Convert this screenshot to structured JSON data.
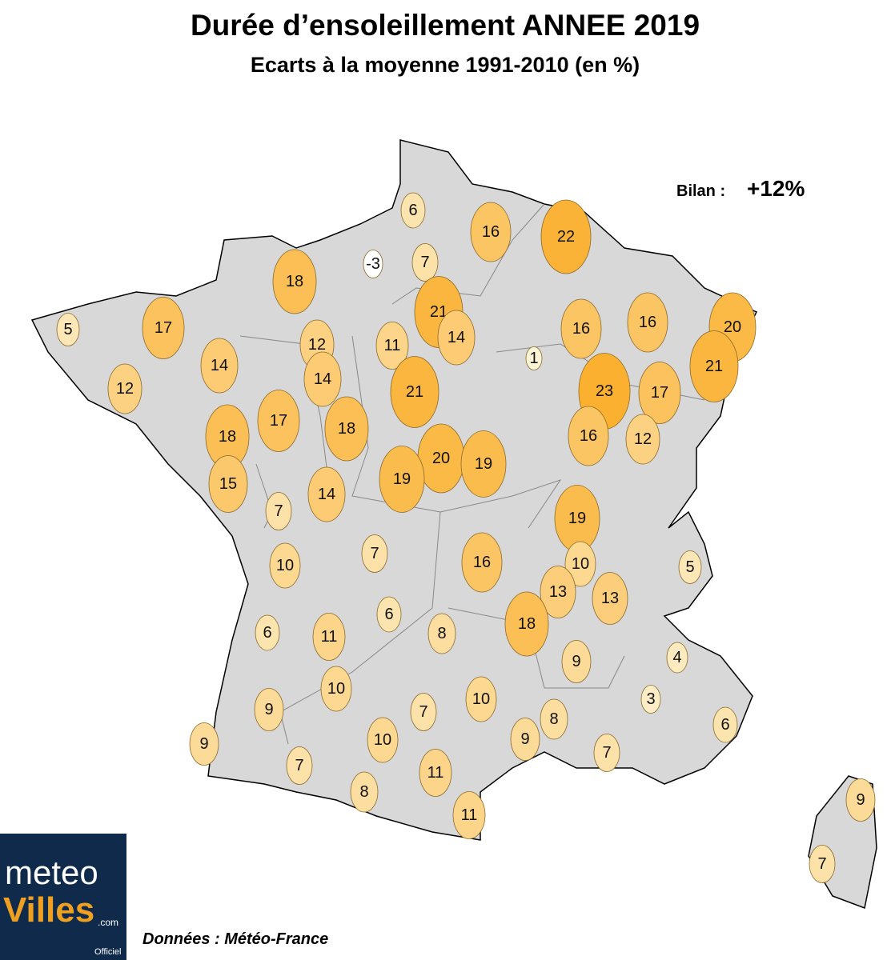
{
  "header": {
    "title": "Durée d’ensoleillement ANNEE 2019",
    "subtitle": "Ecarts à la moyenne 1991-2010 (en %)"
  },
  "summary": {
    "label": "Bilan :",
    "value": "+12%"
  },
  "source": "Données : Météo-France",
  "logo": {
    "line1": "meteo",
    "line2": "Villes",
    "suffix": ".com",
    "tag": "Officiel"
  },
  "markers": [
    {
      "value": 6
    },
    {
      "value": 16
    },
    {
      "value": 22
    },
    {
      "value": -3
    },
    {
      "value": 7
    },
    {
      "value": 18
    },
    {
      "value": 21
    },
    {
      "value": 5
    },
    {
      "value": 17
    },
    {
      "value": 16
    },
    {
      "value": 16
    },
    {
      "value": 20
    },
    {
      "value": 12
    },
    {
      "value": 11
    },
    {
      "value": 14
    },
    {
      "value": 1
    },
    {
      "value": 14
    },
    {
      "value": 21
    },
    {
      "value": 12
    },
    {
      "value": 14
    },
    {
      "value": 21
    },
    {
      "value": 23
    },
    {
      "value": 17
    },
    {
      "value": 18
    },
    {
      "value": 17
    },
    {
      "value": 18
    },
    {
      "value": 16
    },
    {
      "value": 12
    },
    {
      "value": 20
    },
    {
      "value": 19
    },
    {
      "value": 19
    },
    {
      "value": 15
    },
    {
      "value": 14
    },
    {
      "value": 7
    },
    {
      "value": 19
    },
    {
      "value": 16
    },
    {
      "value": 7
    },
    {
      "value": 10
    },
    {
      "value": 10
    },
    {
      "value": 5
    },
    {
      "value": 13
    },
    {
      "value": 13
    },
    {
      "value": 6
    },
    {
      "value": 6
    },
    {
      "value": 11
    },
    {
      "value": 8
    },
    {
      "value": 18
    },
    {
      "value": 4
    },
    {
      "value": 9
    },
    {
      "value": 10
    },
    {
      "value": 3
    },
    {
      "value": 9
    },
    {
      "value": 10
    },
    {
      "value": 7
    },
    {
      "value": 8
    },
    {
      "value": 6
    },
    {
      "value": 9
    },
    {
      "value": 9
    },
    {
      "value": 10
    },
    {
      "value": 7
    },
    {
      "value": 7
    },
    {
      "value": 11
    },
    {
      "value": 8
    },
    {
      "value": 11
    },
    {
      "value": 9
    },
    {
      "value": 7
    }
  ]
}
